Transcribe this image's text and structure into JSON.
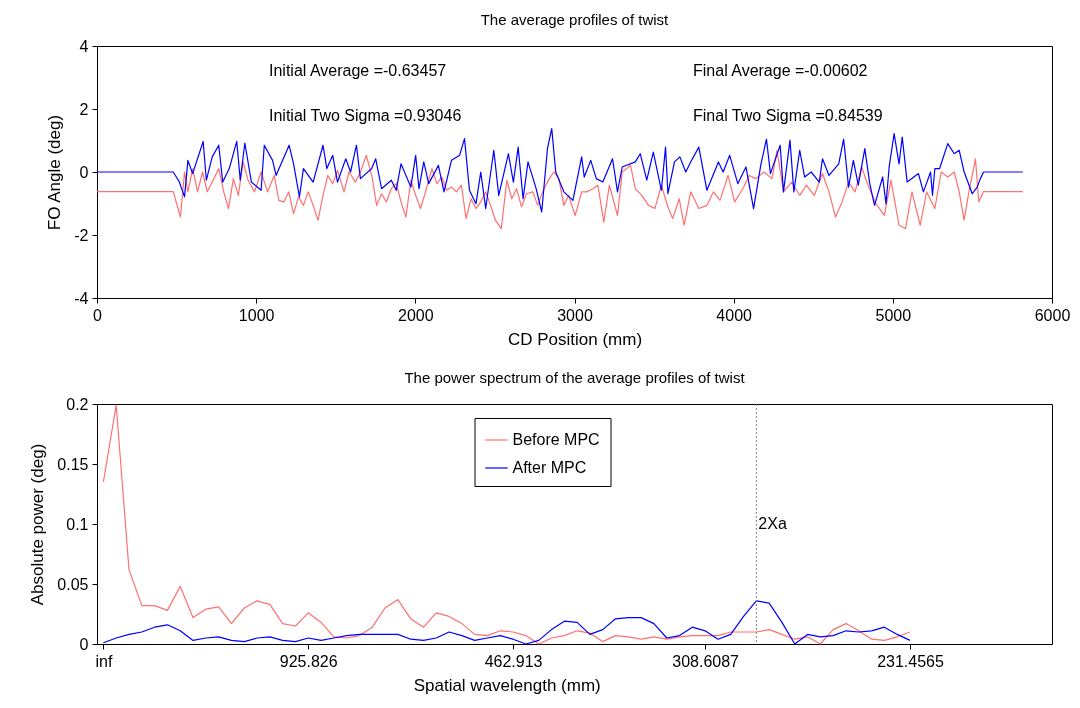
{
  "chart_data": [
    {
      "type": "line",
      "title": "The average profiles of twist",
      "xlabel": "CD Position (mm)",
      "ylabel": "FO Angle (deg)",
      "xlim": [
        0,
        6000
      ],
      "xticks": [
        0,
        1000,
        2000,
        3000,
        4000,
        5000,
        6000
      ],
      "ylim": [
        -4,
        4
      ],
      "yticks": [
        -4,
        -2,
        0,
        2,
        4
      ],
      "grid": false,
      "legend": false,
      "annotations": [
        "Initial Average =-0.63457",
        "Final Average =-0.00602",
        "Initial Two Sigma =0.93046",
        "Final Two Sigma =0.84539"
      ],
      "series": [
        {
          "color": "#ff7070",
          "x": [
            0,
            479,
            524,
            550,
            571,
            601,
            632,
            663,
            693,
            724,
            765,
            796,
            826,
            857,
            888,
            918,
            949,
            990,
            1031,
            1072,
            1113,
            1143,
            1174,
            1205,
            1235,
            1266,
            1297,
            1327,
            1358,
            1389,
            1420,
            1450,
            1481,
            1511,
            1552,
            1583,
            1624,
            1655,
            1692,
            1726,
            1757,
            1788,
            1818,
            1849,
            1880,
            1910,
            1941,
            1972,
            2002,
            2033,
            2064,
            2104,
            2135,
            2166,
            2197,
            2227,
            2258,
            2289,
            2319,
            2350,
            2381,
            2411,
            2442,
            2473,
            2503,
            2540,
            2575,
            2606,
            2636,
            2667,
            2698,
            2738,
            2769,
            2800,
            2841,
            2871,
            2902,
            2933,
            2963,
            3004,
            3045,
            3075,
            3116,
            3147,
            3184,
            3219,
            3270,
            3300,
            3352,
            3382,
            3423,
            3464,
            3505,
            3546,
            3587,
            3617,
            3658,
            3689,
            3730,
            3781,
            3832,
            3873,
            3914,
            3965,
            4006,
            4057,
            4098,
            4139,
            4190,
            4241,
            4272,
            4313,
            4364,
            4415,
            4456,
            4507,
            4558,
            4599,
            4640,
            4681,
            4722,
            4763,
            4804,
            4844,
            4895,
            4947,
            4988,
            5039,
            5080,
            5120,
            5172,
            5212,
            5264,
            5304,
            5345,
            5386,
            5417,
            5448,
            5478,
            5519,
            5540,
            5570,
            5816
          ],
          "values": [
            -0.62,
            -0.62,
            -1.43,
            0,
            -0.63,
            0.11,
            -0.63,
            0,
            -0.63,
            -0.32,
            0.11,
            -0.63,
            -1.16,
            -0.21,
            -0.74,
            0.32,
            -0.26,
            -0.63,
            0,
            -0.63,
            -0.11,
            -0.9,
            -0.95,
            -0.63,
            -1.32,
            -0.79,
            -1.06,
            -0.63,
            -1.06,
            -1.53,
            -0.74,
            -0.11,
            -0.37,
            0.05,
            -0.63,
            0,
            -0.32,
            0,
            0.53,
            -0.11,
            -1.06,
            -0.69,
            -0.95,
            -0.53,
            -0.37,
            -0.95,
            -1.43,
            -0.26,
            -0.74,
            -1.16,
            -0.63,
            0.11,
            -0.37,
            -0.16,
            -0.58,
            -0.48,
            -0.63,
            -0.42,
            -1.48,
            -0.85,
            -1.16,
            -0.95,
            -0.63,
            -1.06,
            -1.53,
            -1.8,
            -0.26,
            -0.85,
            -0.53,
            -1.11,
            -0.69,
            -0.63,
            -1.06,
            -0.63,
            -0.21,
            0,
            -0.21,
            -1.06,
            -0.74,
            -1.38,
            -0.63,
            -0.63,
            -0.53,
            -0.42,
            -1.59,
            -0.42,
            -1.38,
            0,
            0.21,
            -0.53,
            -0.74,
            -1.06,
            -1.16,
            -0.42,
            -1.11,
            -1.48,
            -0.85,
            -1.69,
            -0.63,
            -1.16,
            -1.06,
            -0.63,
            -0.9,
            -0.11,
            -0.95,
            -0.53,
            -0.11,
            -0.21,
            0,
            -0.21,
            0.69,
            -0.63,
            -0.32,
            -0.74,
            -0.42,
            -0.74,
            -0.05,
            -0.63,
            -1.43,
            -0.95,
            -0.32,
            -0.63,
            0.16,
            -0.42,
            -1.01,
            -1.38,
            -0.26,
            -1.69,
            -1.8,
            -0.63,
            -1.69,
            -0.63,
            -1.16,
            0,
            -0.16,
            0,
            -0.63,
            -1.53,
            -0.63,
            0.42,
            -0.95,
            -0.62,
            -0.62
          ]
        },
        {
          "color": "#0000ff",
          "x": [
            0,
            479,
            516,
            550,
            571,
            601,
            667,
            687,
            724,
            765,
            790,
            831,
            878,
            900,
            929,
            970,
            1031,
            1051,
            1103,
            1125,
            1207,
            1235,
            1272,
            1297,
            1358,
            1420,
            1444,
            1481,
            1511,
            1563,
            1593,
            1630,
            1655,
            1726,
            1751,
            1788,
            1849,
            1880,
            1910,
            1972,
            2002,
            2023,
            2053,
            2084,
            2145,
            2180,
            2227,
            2278,
            2309,
            2340,
            2381,
            2411,
            2442,
            2493,
            2524,
            2585,
            2616,
            2646,
            2677,
            2708,
            2759,
            2794,
            2830,
            2857,
            2882,
            2933,
            2990,
            3045,
            3061,
            3102,
            3137,
            3178,
            3239,
            3270,
            3300,
            3382,
            3413,
            3454,
            3495,
            3546,
            3572,
            3587,
            3628,
            3662,
            3699,
            3730,
            3781,
            3832,
            3904,
            3934,
            3975,
            4026,
            4077,
            4125,
            4170,
            4206,
            4231,
            4292,
            4313,
            4354,
            4378,
            4415,
            4446,
            4487,
            4538,
            4558,
            4599,
            4660,
            4691,
            4722,
            4752,
            4783,
            4824,
            4855,
            4885,
            4936,
            4957,
            4977,
            5008,
            5039,
            5059,
            5090,
            5161,
            5192,
            5237,
            5249,
            5264,
            5294,
            5345,
            5386,
            5417,
            5448,
            5499,
            5530,
            5550,
            5570,
            5816
          ],
          "values": [
            0,
            0,
            -0.3,
            -0.79,
            0.37,
            -0.05,
            0.97,
            -0.26,
            0.48,
            0.85,
            -0.32,
            0.11,
            0.97,
            -0.26,
            0.92,
            -0.32,
            -0.58,
            0.85,
            0.37,
            -0.11,
            0.85,
            0.26,
            -0.79,
            0.11,
            -0.32,
            0.85,
            0.11,
            0.53,
            -0.32,
            0.42,
            0,
            0.85,
            -0.21,
            0.11,
            0.42,
            -0.53,
            -0.26,
            -0.58,
            0.26,
            -0.48,
            0.53,
            -0.53,
            0.32,
            -0.37,
            0.21,
            -0.63,
            0.37,
            0.53,
            1.06,
            -0.58,
            -1.01,
            0,
            -1.16,
            0.69,
            -0.74,
            0.58,
            -0.32,
            0.79,
            -0.85,
            0.32,
            -0.53,
            -1.27,
            0.74,
            1.38,
            0,
            -0.63,
            -0.9,
            0.48,
            -0.16,
            0.37,
            -0.21,
            -0.32,
            0.42,
            -0.63,
            0.16,
            0.32,
            0.58,
            -0.26,
            0.63,
            -0.58,
            0.79,
            -0.69,
            0.32,
            0.48,
            0,
            0.32,
            0.79,
            -0.58,
            0.32,
            0,
            0.53,
            -0.37,
            0.16,
            -1.16,
            0.21,
            1.04,
            -0.05,
            0.85,
            -0.63,
            1.01,
            -0.63,
            0.69,
            -0.16,
            0,
            -0.32,
            0.42,
            -0.11,
            0.26,
            1.04,
            -0.48,
            0.37,
            -0.42,
            0.74,
            -0.37,
            -1.06,
            -0.16,
            -1.01,
            0.16,
            1.22,
            0.26,
            1.11,
            -0.32,
            -0.05,
            -0.63,
            0,
            -0.74,
            0.11,
            0.11,
            0.9,
            0.58,
            0.69,
            0,
            -0.69,
            -0.48,
            -0.21,
            0,
            0
          ]
        }
      ]
    },
    {
      "type": "line",
      "title": "The power spectrum of the average profiles of twist",
      "xlabel": "Spatial wavelength (mm)",
      "ylabel": "Absolute power (deg)",
      "categories": [
        "inf",
        null,
        null,
        null,
        null,
        null,
        null,
        null,
        null,
        null,
        null,
        null,
        null,
        null,
        null,
        null,
        "925.826",
        null,
        null,
        null,
        null,
        null,
        null,
        null,
        null,
        null,
        null,
        null,
        null,
        null,
        null,
        null,
        "462.913",
        null,
        null,
        null,
        null,
        null,
        null,
        null,
        null,
        null,
        null,
        null,
        null,
        null,
        null,
        "308.6087",
        null,
        null,
        null,
        null,
        null,
        null,
        null,
        null,
        null,
        null,
        null,
        null,
        null,
        null,
        null,
        "231.4565"
      ],
      "ylim": [
        0,
        0.2
      ],
      "yticks": [
        0,
        0.05,
        0.1,
        0.15,
        0.2
      ],
      "legend": "top",
      "annotations": [
        "2Xa"
      ],
      "series": [
        {
          "name": "Before MPC",
          "color": "#ff7070",
          "values": [
            0.135,
            0.199,
            0.062,
            0.032,
            0.032,
            0.028,
            0.048,
            0.022,
            0.029,
            0.031,
            0.017,
            0.03,
            0.036,
            0.033,
            0.017,
            0.015,
            0.026,
            0.018,
            0.006,
            0.005,
            0.007,
            0.014,
            0.03,
            0.037,
            0.021,
            0.014,
            0.026,
            0.023,
            0.017,
            0.008,
            0.007,
            0.011,
            0.01,
            0.007,
            0,
            0.005,
            0.007,
            0.011,
            0.009,
            0.002,
            0.007,
            0.006,
            0.004,
            0.006,
            0.004,
            0.006,
            0.007,
            0.007,
            0.007,
            0.01,
            0.01,
            0.01,
            0.012,
            0.008,
            0.004,
            0.006,
            0,
            0.012,
            0.017,
            0.011,
            0.004,
            0.003,
            0.006,
            0.01
          ]
        },
        {
          "name": "After MPC",
          "color": "#0000ff",
          "values": [
            0.001,
            0.005,
            0.008,
            0.01,
            0.014,
            0.016,
            0.011,
            0.003,
            0.005,
            0.006,
            0.003,
            0.002,
            0.005,
            0.006,
            0.003,
            0.002,
            0.005,
            0.003,
            0.005,
            0.007,
            0.008,
            0.008,
            0.008,
            0.008,
            0.004,
            0.003,
            0.005,
            0.01,
            0.007,
            0.003,
            0.005,
            0.007,
            0.004,
            0,
            0.003,
            0.012,
            0.019,
            0.018,
            0.008,
            0.012,
            0.021,
            0.022,
            0.022,
            0.017,
            0.005,
            0.007,
            0.014,
            0.011,
            0.004,
            0.008,
            0.023,
            0.036,
            0.034,
            0.018,
            0,
            0.008,
            0.006,
            0.007,
            0.011,
            0.01,
            0.011,
            0.014,
            0.008,
            0.003
          ]
        }
      ]
    }
  ]
}
